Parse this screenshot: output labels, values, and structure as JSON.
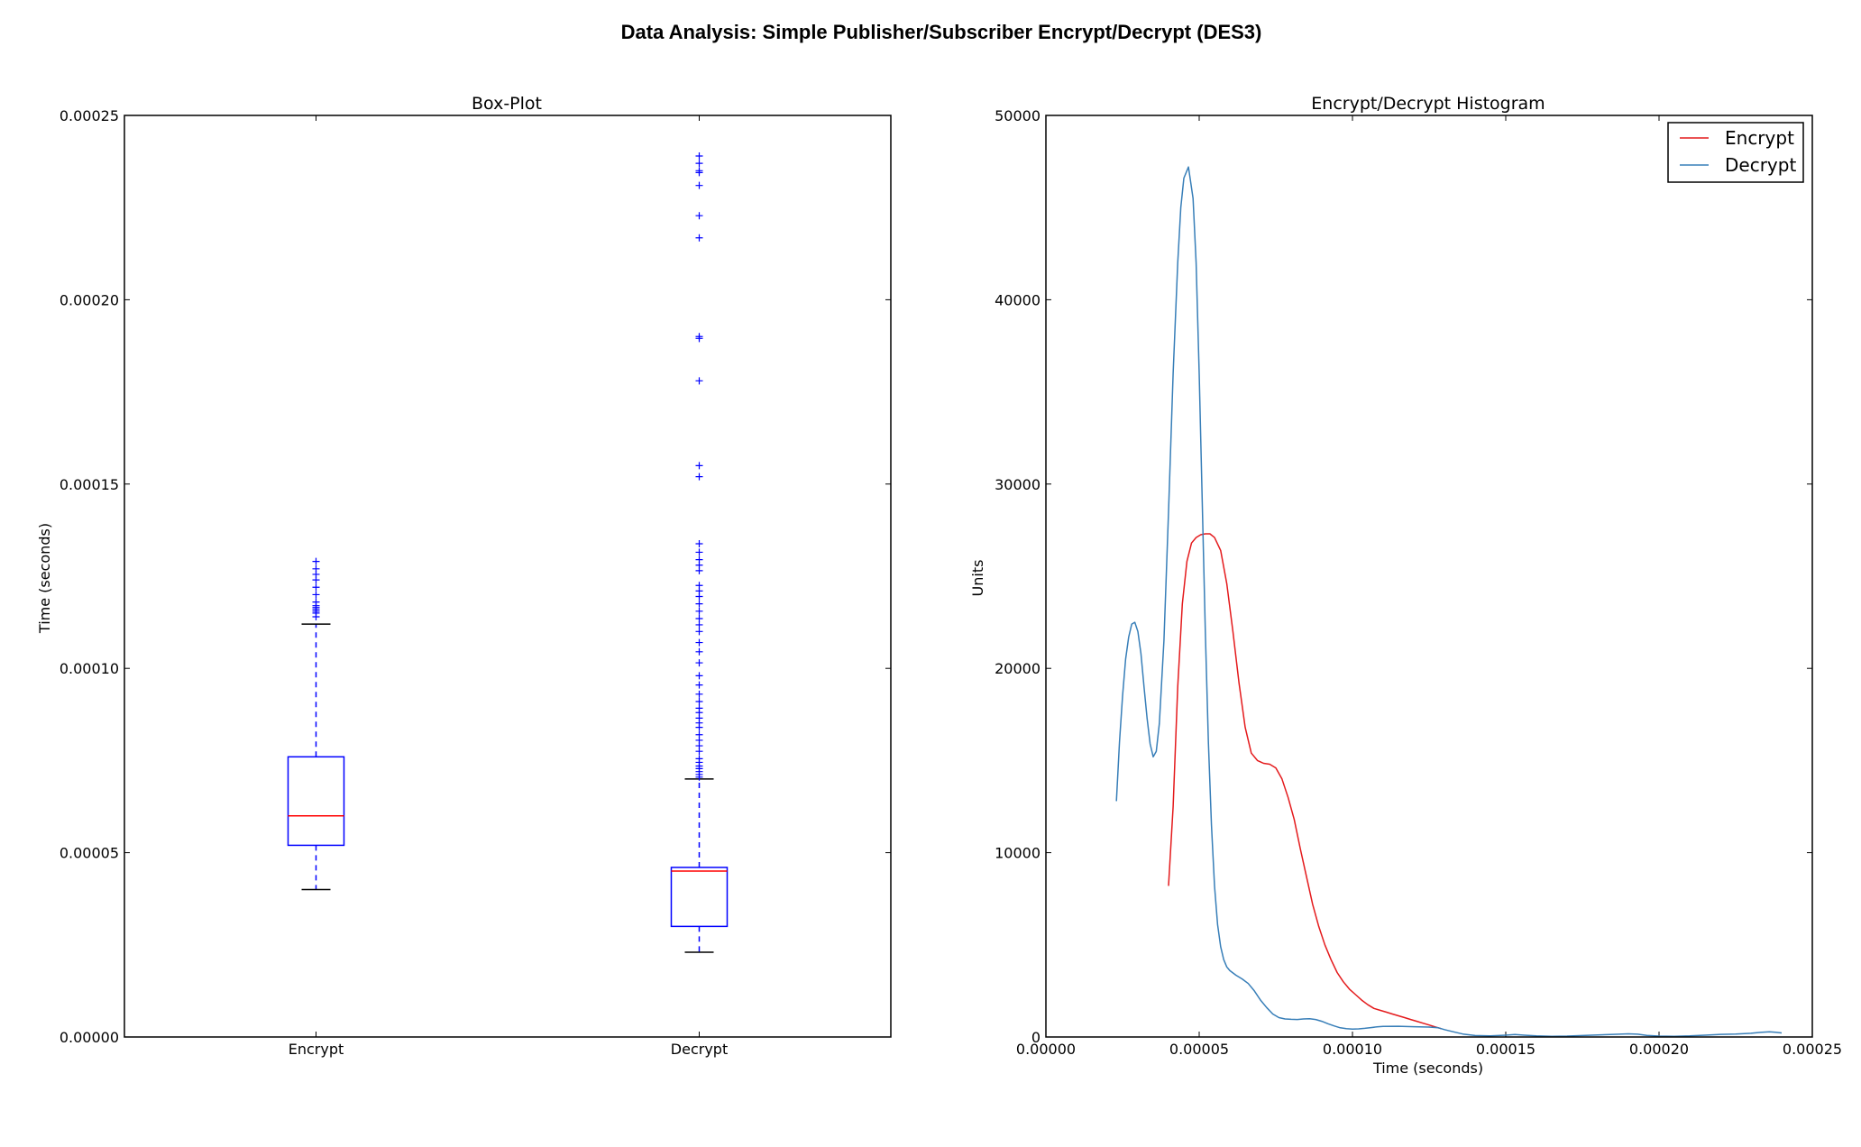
{
  "figure_title": "Data Analysis: Simple Publisher/Subscriber Encrypt/Decrypt (DES3)",
  "colors": {
    "box": "#0000ff",
    "median": "#ff0000",
    "cap": "#000000",
    "encrypt_line": "#e41a1c",
    "decrypt_line": "#377eb8"
  },
  "chart_data": [
    {
      "type": "box",
      "title": "Box-Plot",
      "xlabel": "",
      "ylabel": "Time (seconds)",
      "ylim": [
        0,
        0.00025
      ],
      "y_ticks": [
        "0.00000",
        "0.00005",
        "0.00010",
        "0.00015",
        "0.00020",
        "0.00025"
      ],
      "categories": [
        "Encrypt",
        "Decrypt"
      ],
      "boxes": [
        {
          "label": "Encrypt",
          "whisker_low": 4e-05,
          "q1": 5.2e-05,
          "median": 6e-05,
          "q3": 7.6e-05,
          "whisker_high": 0.000112,
          "outliers": [
            0.000114,
            0.000115,
            0.0001155,
            0.000116,
            0.0001165,
            0.000117,
            0.000118,
            0.00012,
            0.000122,
            0.000124,
            0.0001255,
            0.000127,
            0.000129
          ]
        },
        {
          "label": "Decrypt",
          "whisker_low": 2.3e-05,
          "q1": 3e-05,
          "median": 4.5e-05,
          "q3": 4.6e-05,
          "whisker_high": 7e-05,
          "outliers": [
            7.05e-05,
            7.12e-05,
            7.2e-05,
            7.28e-05,
            7.35e-05,
            7.45e-05,
            7.55e-05,
            7.75e-05,
            7.9e-05,
            8.05e-05,
            8.2e-05,
            8.4e-05,
            8.52e-05,
            8.65e-05,
            8.8e-05,
            8.92e-05,
            9.1e-05,
            9.3e-05,
            9.55e-05,
            9.8e-05,
            0.0001015,
            0.0001045,
            0.000107,
            0.00011,
            0.0001118,
            0.0001135,
            0.0001155,
            0.0001175,
            0.0001195,
            0.000121,
            0.0001225,
            0.0001265,
            0.000128,
            0.0001295,
            0.0001315,
            0.0001338,
            0.000152,
            0.000155,
            0.000178,
            0.0001895,
            0.00019,
            0.0002168,
            0.0002228,
            0.000231,
            0.0002345,
            0.000235,
            0.000237,
            0.000239
          ]
        }
      ]
    },
    {
      "type": "line",
      "title": "Encrypt/Decrypt Histogram",
      "xlabel": "Time (seconds)",
      "ylabel": "Units",
      "xlim": [
        0,
        0.00025
      ],
      "ylim": [
        0,
        50000
      ],
      "x_ticks": [
        "0.00000",
        "0.00005",
        "0.00010",
        "0.00015",
        "0.00020",
        "0.00025"
      ],
      "y_ticks": [
        "0",
        "10000",
        "20000",
        "30000",
        "40000",
        "50000"
      ],
      "legend_position": "top-right",
      "series": [
        {
          "name": "Encrypt",
          "color_key": "encrypt_line",
          "points": [
            [
              4e-05,
              8200
            ],
            [
              4.15e-05,
              12500
            ],
            [
              4.3e-05,
              19000
            ],
            [
              4.45e-05,
              23500
            ],
            [
              4.6e-05,
              25800
            ],
            [
              4.75e-05,
              26800
            ],
            [
              4.9e-05,
              27100
            ],
            [
              5.05e-05,
              27250
            ],
            [
              5.2e-05,
              27300
            ],
            [
              5.35e-05,
              27300
            ],
            [
              5.5e-05,
              27100
            ],
            [
              5.7e-05,
              26400
            ],
            [
              5.9e-05,
              24600
            ],
            [
              6.1e-05,
              22000
            ],
            [
              6.3e-05,
              19200
            ],
            [
              6.5e-05,
              16800
            ],
            [
              6.7e-05,
              15400
            ],
            [
              6.9e-05,
              15000
            ],
            [
              7.1e-05,
              14850
            ],
            [
              7.3e-05,
              14800
            ],
            [
              7.5e-05,
              14600
            ],
            [
              7.7e-05,
              14000
            ],
            [
              7.9e-05,
              13000
            ],
            [
              8.1e-05,
              11800
            ],
            [
              8.3e-05,
              10200
            ],
            [
              8.5e-05,
              8700
            ],
            [
              8.7e-05,
              7200
            ],
            [
              8.9e-05,
              6000
            ],
            [
              9.1e-05,
              5000
            ],
            [
              9.3e-05,
              4200
            ],
            [
              9.5e-05,
              3500
            ],
            [
              9.7e-05,
              3000
            ],
            [
              9.9e-05,
              2600
            ],
            [
              0.000101,
              2300
            ],
            [
              0.000103,
              2000
            ],
            [
              0.000105,
              1750
            ],
            [
              0.000107,
              1550
            ],
            [
              0.000109,
              1450
            ],
            [
              0.000111,
              1350
            ],
            [
              0.000113,
              1250
            ],
            [
              0.000115,
              1150
            ],
            [
              0.000117,
              1050
            ],
            [
              0.000119,
              950
            ],
            [
              0.000121,
              850
            ],
            [
              0.000123,
              750
            ],
            [
              0.000125,
              650
            ],
            [
              0.000127,
              550
            ],
            [
              0.000129,
              450
            ]
          ]
        },
        {
          "name": "Decrypt",
          "color_key": "decrypt_line",
          "points": [
            [
              2.3e-05,
              12800
            ],
            [
              2.4e-05,
              16000
            ],
            [
              2.5e-05,
              18500
            ],
            [
              2.6e-05,
              20500
            ],
            [
              2.7e-05,
              21700
            ],
            [
              2.8e-05,
              22400
            ],
            [
              2.9e-05,
              22500
            ],
            [
              3e-05,
              22000
            ],
            [
              3.1e-05,
              20800
            ],
            [
              3.2e-05,
              19000
            ],
            [
              3.3e-05,
              17300
            ],
            [
              3.4e-05,
              15900
            ],
            [
              3.5e-05,
              15200
            ],
            [
              3.6e-05,
              15500
            ],
            [
              3.7e-05,
              17000
            ],
            [
              3.85e-05,
              21500
            ],
            [
              4e-05,
              28500
            ],
            [
              4.15e-05,
              36000
            ],
            [
              4.3e-05,
              42000
            ],
            [
              4.4e-05,
              45000
            ],
            [
              4.5e-05,
              46600
            ],
            [
              4.65e-05,
              47200
            ],
            [
              4.8e-05,
              45500
            ],
            [
              4.9e-05,
              42000
            ],
            [
              5e-05,
              36000
            ],
            [
              5.1e-05,
              29000
            ],
            [
              5.2e-05,
              22000
            ],
            [
              5.3e-05,
              16000
            ],
            [
              5.4e-05,
              11500
            ],
            [
              5.5e-05,
              8200
            ],
            [
              5.6e-05,
              6100
            ],
            [
              5.7e-05,
              4900
            ],
            [
              5.8e-05,
              4200
            ],
            [
              5.9e-05,
              3800
            ],
            [
              6e-05,
              3600
            ],
            [
              6.2e-05,
              3350
            ],
            [
              6.4e-05,
              3150
            ],
            [
              6.6e-05,
              2900
            ],
            [
              6.8e-05,
              2500
            ],
            [
              7e-05,
              2000
            ],
            [
              7.2e-05,
              1600
            ],
            [
              7.4e-05,
              1250
            ],
            [
              7.6e-05,
              1050
            ],
            [
              7.8e-05,
              980
            ],
            [
              8e-05,
              960
            ],
            [
              8.2e-05,
              950
            ],
            [
              8.4e-05,
              980
            ],
            [
              8.6e-05,
              990
            ],
            [
              8.8e-05,
              950
            ],
            [
              9e-05,
              850
            ],
            [
              9.2e-05,
              720
            ],
            [
              9.4e-05,
              600
            ],
            [
              9.6e-05,
              500
            ],
            [
              9.8e-05,
              450
            ],
            [
              0.0001,
              430
            ],
            [
              0.000102,
              440
            ],
            [
              0.000104,
              470
            ],
            [
              0.000106,
              510
            ],
            [
              0.000108,
              550
            ],
            [
              0.00011,
              570
            ],
            [
              0.000115,
              580
            ],
            [
              0.00012,
              560
            ],
            [
              0.000125,
              540
            ],
            [
              0.000128,
              500
            ],
            [
              0.00013,
              400
            ],
            [
              0.000133,
              280
            ],
            [
              0.000136,
              160
            ],
            [
              0.00014,
              80
            ],
            [
              0.000145,
              60
            ],
            [
              0.00015,
              100
            ],
            [
              0.000153,
              130
            ],
            [
              0.000156,
              100
            ],
            [
              0.00016,
              60
            ],
            [
              0.000165,
              40
            ],
            [
              0.00017,
              50
            ],
            [
              0.000175,
              80
            ],
            [
              0.00018,
              110
            ],
            [
              0.000185,
              140
            ],
            [
              0.00019,
              170
            ],
            [
              0.000193,
              150
            ],
            [
              0.000196,
              90
            ],
            [
              0.0002,
              50
            ],
            [
              0.000205,
              40
            ],
            [
              0.00021,
              60
            ],
            [
              0.000215,
              100
            ],
            [
              0.00022,
              140
            ],
            [
              0.000225,
              160
            ],
            [
              0.00023,
              200
            ],
            [
              0.000233,
              250
            ],
            [
              0.000236,
              280
            ],
            [
              0.000238,
              260
            ],
            [
              0.00024,
              220
            ]
          ]
        }
      ]
    }
  ]
}
